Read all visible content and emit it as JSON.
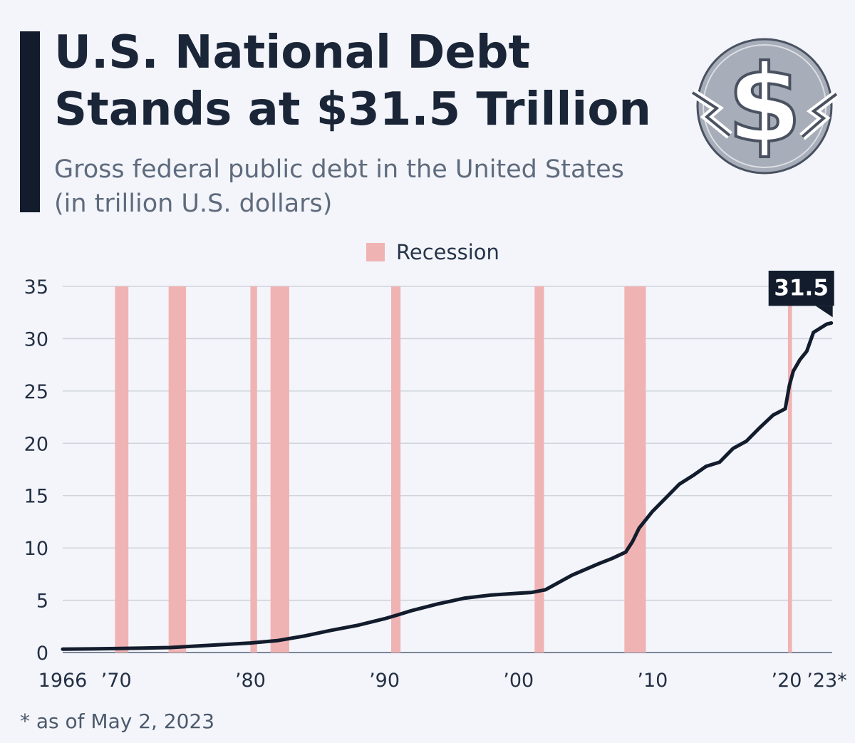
{
  "header": {
    "title_line1": "U.S. National Debt",
    "title_line2": "Stands at $31.5 Trillion",
    "subtitle_line1": "Gross federal public debt in the United States",
    "subtitle_line2": "(in trillion U.S. dollars)"
  },
  "footnote": "* as of May 2, 2023",
  "colors": {
    "line": "#121c2d",
    "recession": "#f0b3b3",
    "grid": "#c9ced8",
    "axis_text": "#243044",
    "callout_bg": "#121c2d",
    "callout_text": "#ffffff"
  },
  "logo": {
    "icon": "dollar-sign-icon"
  },
  "chart_data": {
    "type": "line",
    "title": "U.S. National Debt Stands at $31.5 Trillion",
    "subtitle": "Gross federal public debt in the United States (in trillion U.S. dollars)",
    "xlim": [
      1966,
      2023.4
    ],
    "ylim": [
      0,
      35
    ],
    "yticks": [
      0,
      5,
      10,
      15,
      20,
      25,
      30,
      35
    ],
    "xticks": [
      {
        "value": 1966,
        "label": "1966"
      },
      {
        "value": 1970,
        "label": "’70"
      },
      {
        "value": 1980,
        "label": "’80"
      },
      {
        "value": 1990,
        "label": "’90"
      },
      {
        "value": 2000,
        "label": "’00"
      },
      {
        "value": 2010,
        "label": "’10"
      },
      {
        "value": 2020,
        "label": "’20"
      },
      {
        "value": 2023,
        "label": "’23*"
      }
    ],
    "grid": true,
    "legend": {
      "position": "top-center",
      "label": "Recession"
    },
    "recessions": [
      [
        1969.9,
        1970.9
      ],
      [
        1973.9,
        1975.2
      ],
      [
        1980.0,
        1980.5
      ],
      [
        1981.5,
        1982.9
      ],
      [
        1990.5,
        1991.2
      ],
      [
        2001.2,
        2001.9
      ],
      [
        2007.9,
        2009.5
      ],
      [
        2020.1,
        2020.4
      ]
    ],
    "series": [
      {
        "x": [
          1966,
          1968,
          1970,
          1972,
          1974,
          1976,
          1978,
          1980,
          1982,
          1984,
          1986,
          1988,
          1990,
          1991,
          1992,
          1994,
          1996,
          1998,
          2000,
          2001,
          2002,
          2004,
          2006,
          2007,
          2008,
          2008.5,
          2009,
          2010,
          2011,
          2012,
          2013,
          2014,
          2015,
          2016,
          2017,
          2018,
          2019,
          2019.9,
          2020.2,
          2020.5,
          2021,
          2021.5,
          2022,
          2022.5,
          2023,
          2023.33
        ],
        "y": [
          0.32,
          0.35,
          0.38,
          0.43,
          0.48,
          0.62,
          0.77,
          0.91,
          1.14,
          1.57,
          2.12,
          2.6,
          3.23,
          3.6,
          4.0,
          4.65,
          5.2,
          5.5,
          5.67,
          5.75,
          6.0,
          7.4,
          8.5,
          9.0,
          9.6,
          10.6,
          11.9,
          13.5,
          14.8,
          16.1,
          16.9,
          17.8,
          18.2,
          19.5,
          20.2,
          21.5,
          22.7,
          23.3,
          25.5,
          26.9,
          28.0,
          28.8,
          30.6,
          31.0,
          31.4,
          31.5
        ]
      }
    ],
    "annotations": [
      {
        "x": 2023.33,
        "y": 31.5,
        "label": "31.5"
      }
    ]
  }
}
